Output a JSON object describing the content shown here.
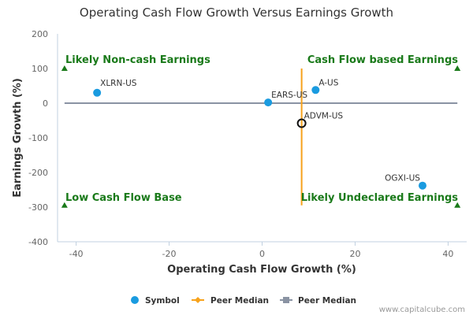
{
  "chart_data": {
    "type": "scatter",
    "title": "Operating Cash Flow Growth Versus Earnings Growth",
    "xlabel": "Operating Cash Flow Growth (%)",
    "ylabel": "Earnings Growth (%)",
    "xlim": [
      -44,
      44
    ],
    "ylim": [
      -400,
      200
    ],
    "xticks": [
      -40,
      -20,
      0,
      20,
      40
    ],
    "yticks": [
      200,
      100,
      0,
      -100,
      -200,
      -300,
      -400
    ],
    "series": [
      {
        "name": "Symbol",
        "color": "#1a9be0",
        "points": [
          {
            "label": "XLRN-US",
            "x": -35.5,
            "y": 30
          },
          {
            "label": "EARS-US",
            "x": 1.3,
            "y": 2
          },
          {
            "label": "A-US",
            "x": 11.5,
            "y": 38
          },
          {
            "label": "OGXI-US",
            "x": 34.5,
            "y": -238
          }
        ]
      }
    ],
    "highlight_point": {
      "label": "ADVM-US",
      "x": 8.5,
      "y": -58
    },
    "peer_median": {
      "x": 8.5,
      "y": 0
    },
    "quadrant_labels": {
      "top_left": "Likely Non-cash Earnings",
      "top_right": "Cash Flow based Earnings",
      "bottom_left": "Low Cash Flow Base",
      "bottom_right": "Likely Undeclared Earnings"
    },
    "legend": {
      "position": "bottom-center",
      "items": [
        {
          "label": "Symbol",
          "color": "#1a9be0",
          "marker": "circle"
        },
        {
          "label": "Peer Median",
          "color": "#f7a21b",
          "marker": "diamond-line"
        },
        {
          "label": "Peer Median",
          "color": "#8a93a3",
          "marker": "square-line"
        }
      ]
    },
    "credit": "www.capitalcube.com",
    "colors": {
      "symbol": "#1a9be0",
      "vertical_median": "#f7a21b",
      "horizontal_median": "#8a93a3",
      "quadrant_text": "#1a7a1a"
    }
  }
}
